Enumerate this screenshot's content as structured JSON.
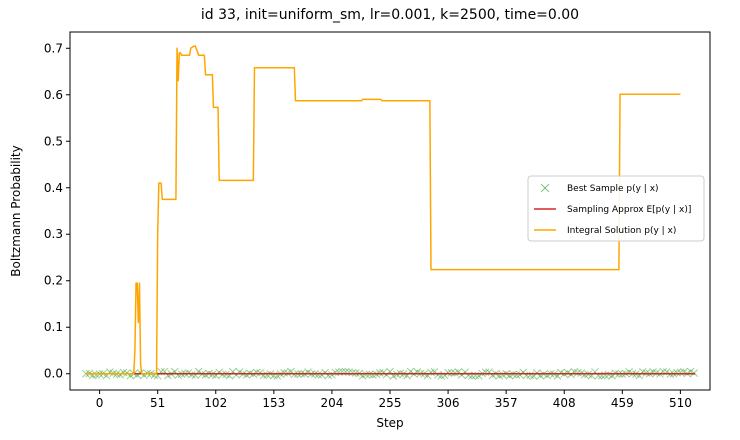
{
  "chart_data": {
    "type": "line",
    "title": "id 33, init=uniform_sm, lr=0.001, k=2500, time=0.00",
    "xlabel": "Step",
    "ylabel": "Boltzmann Probability",
    "xlim": [
      -26,
      536
    ],
    "ylim": [
      -0.035,
      0.735
    ],
    "xticks": [
      0,
      51,
      102,
      153,
      204,
      255,
      306,
      357,
      408,
      459,
      510
    ],
    "yticks": [
      0.0,
      0.1,
      0.2,
      0.3,
      0.4,
      0.5,
      0.6,
      0.7
    ],
    "ytick_labels": [
      "0.0",
      "0.1",
      "0.2",
      "0.3",
      "0.4",
      "0.5",
      "0.6",
      "0.7"
    ],
    "grid": false,
    "legend_position": "center-right",
    "series": [
      {
        "name": "Best Sample p(y | x)",
        "kind": "scatter-x",
        "color": "#2ca02c",
        "x_range": [
          -12,
          523
        ],
        "y_approx": 0.0,
        "y_jitter": 0.005
      },
      {
        "name": "Sampling Approx E[p(y | x)]",
        "kind": "line",
        "color": "#d62728",
        "x": [
          -12,
          523
        ],
        "y": [
          0.0,
          0.0
        ]
      },
      {
        "name": "Integral Solution p(y | x)",
        "kind": "line",
        "color": "#ffa500",
        "x": [
          -12,
          30,
          31,
          32,
          33,
          34,
          35,
          36,
          37,
          38,
          50,
          51,
          52,
          54,
          55,
          58,
          59,
          67,
          68,
          69,
          70,
          71,
          72,
          73,
          74,
          79,
          80,
          83,
          84,
          87,
          92,
          93,
          99,
          100,
          101,
          104,
          105,
          135,
          136,
          171,
          172,
          230,
          231,
          247,
          248,
          290,
          291,
          456,
          457,
          510
        ],
        "y": [
          0.0,
          0.0,
          0.05,
          0.195,
          0.195,
          0.11,
          0.195,
          0.02,
          0.0,
          0.0,
          0.0,
          0.3,
          0.41,
          0.41,
          0.375,
          0.375,
          0.375,
          0.375,
          0.7,
          0.63,
          0.69,
          0.69,
          0.685,
          0.685,
          0.685,
          0.685,
          0.7,
          0.705,
          0.705,
          0.685,
          0.685,
          0.643,
          0.643,
          0.573,
          0.573,
          0.573,
          0.416,
          0.416,
          0.658,
          0.658,
          0.587,
          0.587,
          0.59,
          0.59,
          0.587,
          0.587,
          0.224,
          0.224,
          0.601,
          0.601
        ]
      }
    ]
  }
}
